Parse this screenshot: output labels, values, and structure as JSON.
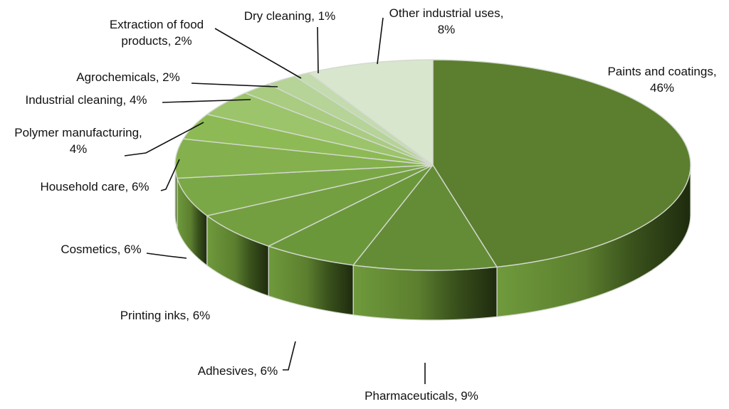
{
  "chart_data": {
    "type": "pie",
    "title": "",
    "unit": "%",
    "slices": [
      {
        "label": "Paints and coatings",
        "value": 46,
        "label_text": [
          "Paints and coatings,",
          "46%"
        ],
        "color": "#5c7f2f"
      },
      {
        "label": "Pharmaceuticals",
        "value": 9,
        "label_text": [
          "Pharmaceuticals, 9%"
        ],
        "color": "#648c36"
      },
      {
        "label": "Adhesives",
        "value": 6,
        "label_text": [
          "Adhesives, 6%"
        ],
        "color": "#6b973b"
      },
      {
        "label": "Printing inks",
        "value": 6,
        "label_text": [
          "Printing inks, 6%"
        ],
        "color": "#739f40"
      },
      {
        "label": "Cosmetics",
        "value": 6,
        "label_text": [
          "Cosmetics, 6%"
        ],
        "color": "#7ba847"
      },
      {
        "label": "Household care",
        "value": 6,
        "label_text": [
          "Household care, 6%"
        ],
        "color": "#84b04d"
      },
      {
        "label": "Polymer manufacturing",
        "value": 4,
        "label_text": [
          "Polymer manufacturing,",
          "4%"
        ],
        "color": "#8dba54"
      },
      {
        "label": "Industrial cleaning",
        "value": 4,
        "label_text": [
          "Industrial cleaning, 4%"
        ],
        "color": "#9cc46b"
      },
      {
        "label": "Agrochemicals",
        "value": 2,
        "label_text": [
          "Agrochemicals, 2%"
        ],
        "color": "#a9cc81"
      },
      {
        "label": "Extraction of food products",
        "value": 2,
        "label_text": [
          "Extraction of food",
          "products, 2%"
        ],
        "color": "#b6d398"
      },
      {
        "label": "Dry cleaning",
        "value": 1,
        "label_text": [
          "Dry cleaning, 1%"
        ],
        "color": "#c3dbae"
      },
      {
        "label": "Other industrial uses",
        "value": 8,
        "label_text": [
          "Other industrial uses,",
          "8%"
        ],
        "color": "#d8e6cd"
      }
    ],
    "style": {
      "three_d": true,
      "start": "top",
      "direction": "clockwise",
      "legend": "none",
      "grid": false
    }
  }
}
